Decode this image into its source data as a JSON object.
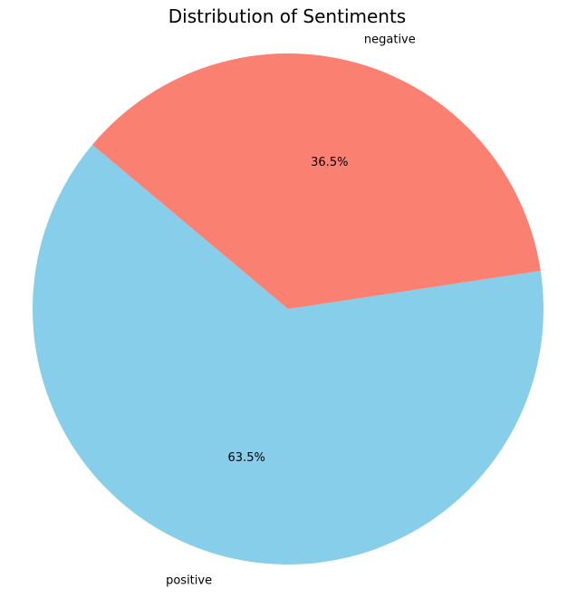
{
  "chart_data": {
    "type": "pie",
    "title": "Distribution of Sentiments",
    "start_angle_deg": 140,
    "direction": "counterclockwise",
    "slices": [
      {
        "label": "positive",
        "value": 63.5,
        "percent_label": "63.5%",
        "color": "#87CEEB"
      },
      {
        "label": "negative",
        "value": 36.5,
        "percent_label": "36.5%",
        "color": "#FA8072"
      }
    ]
  }
}
